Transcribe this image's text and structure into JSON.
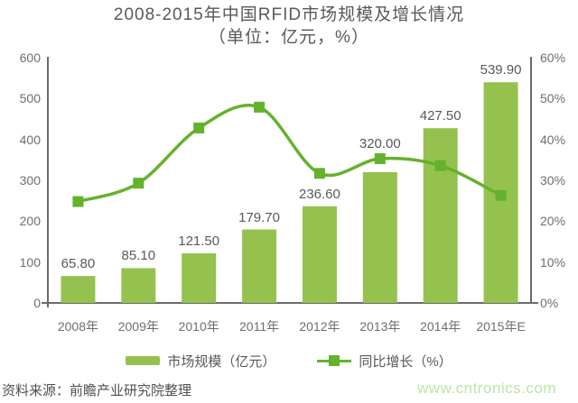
{
  "title": {
    "line1": "2008-2015年中国RFID市场规模及增长情况",
    "line2": "（单位：亿元，%）"
  },
  "chart_data": {
    "type": "bar+line combo",
    "title": "2008-2015年中国RFID市场规模及增长情况（单位：亿元，%）",
    "categories": [
      "2008年",
      "2009年",
      "2010年",
      "2011年",
      "2012年",
      "2013年",
      "2014年",
      "2015年E"
    ],
    "series": [
      {
        "name": "市场规模（亿元）",
        "type": "bar",
        "axis": "left",
        "values": [
          65.8,
          85.1,
          121.5,
          179.7,
          236.6,
          320.0,
          427.5,
          539.9
        ],
        "labels": [
          "65.80",
          "85.10",
          "121.50",
          "179.70",
          "236.60",
          "320.00",
          "427.50",
          "539.90"
        ]
      },
      {
        "name": "同比增长（%）",
        "type": "line",
        "axis": "right",
        "values": [
          24.8,
          29.3,
          42.8,
          47.9,
          31.7,
          35.3,
          33.6,
          26.3
        ]
      }
    ],
    "left_axis": {
      "min": 0,
      "max": 600,
      "ticks": [
        "0",
        "100",
        "200",
        "300",
        "400",
        "500",
        "600"
      ]
    },
    "right_axis": {
      "min": 0,
      "max": 60,
      "ticks": [
        "0%",
        "10%",
        "20%",
        "30%",
        "40%",
        "50%",
        "60%"
      ]
    },
    "grid": false,
    "legend_position": "bottom"
  },
  "footer": {
    "source": "资料来源：前瞻产业研究院整理",
    "watermark": "www.cntronics.com"
  },
  "colors": {
    "bar": "#95c24e",
    "line": "#64b22d",
    "title_text": "#595959",
    "tick_text": "#6e6e6e",
    "value_label_text": "#595959",
    "axis_line": "#6b6b6b",
    "source_text": "#4f4f4f",
    "watermark_text": "#b9e6a6"
  }
}
